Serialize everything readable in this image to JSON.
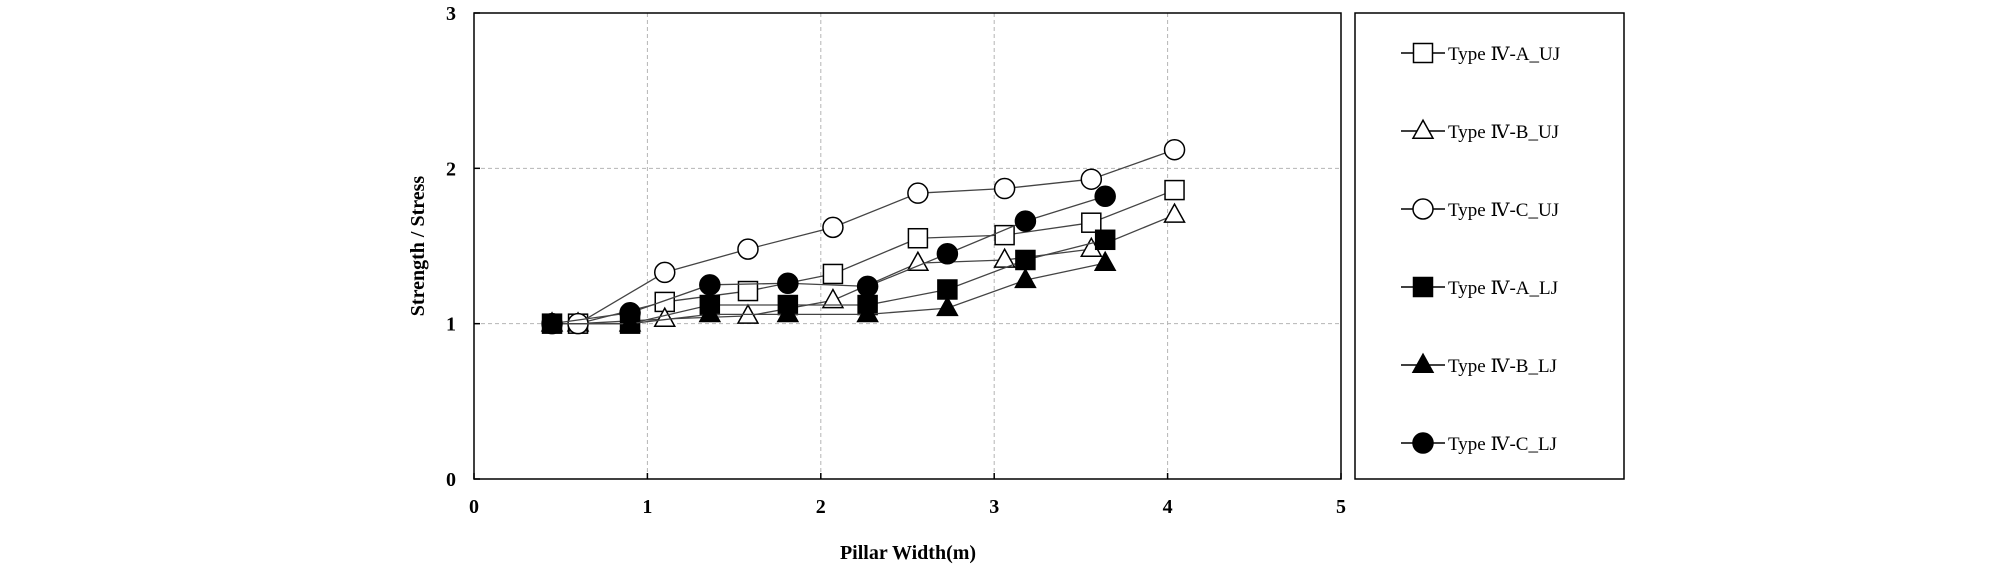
{
  "chart_data": {
    "type": "line",
    "title": "",
    "xlabel": "Pillar Width(m)",
    "ylabel": "Strength / Stress",
    "xlim": [
      0,
      5
    ],
    "ylim": [
      0,
      3
    ],
    "xticks": [
      "0",
      "1",
      "2",
      "3",
      "4",
      "5"
    ],
    "yticks": [
      "0",
      "1",
      "2",
      "3"
    ],
    "grid": true,
    "legend_position": "right",
    "series": [
      {
        "name": "Type Ⅳ-A_UJ",
        "marker": "square",
        "filled": false,
        "x": [
          0.6,
          1.1,
          1.58,
          2.07,
          2.56,
          3.06,
          3.56,
          4.04
        ],
        "y": [
          1.0,
          1.14,
          1.21,
          1.32,
          1.55,
          1.57,
          1.65,
          1.86
        ]
      },
      {
        "name": "Type Ⅳ-B_UJ",
        "marker": "triangle",
        "filled": false,
        "x": [
          0.6,
          1.1,
          1.58,
          2.07,
          2.56,
          3.06,
          3.56,
          4.04
        ],
        "y": [
          1.0,
          1.03,
          1.05,
          1.15,
          1.39,
          1.41,
          1.48,
          1.7
        ]
      },
      {
        "name": "Type Ⅳ-C_UJ",
        "marker": "circle",
        "filled": false,
        "x": [
          0.6,
          1.1,
          1.58,
          2.07,
          2.56,
          3.06,
          3.56,
          4.04
        ],
        "y": [
          1.0,
          1.33,
          1.48,
          1.62,
          1.84,
          1.87,
          1.93,
          2.12
        ]
      },
      {
        "name": "Type Ⅳ-A_LJ",
        "marker": "square",
        "filled": true,
        "x": [
          0.45,
          0.9,
          1.36,
          1.81,
          2.27,
          2.73,
          3.18,
          3.64
        ],
        "y": [
          1.0,
          1.0,
          1.12,
          1.12,
          1.12,
          1.22,
          1.41,
          1.54
        ]
      },
      {
        "name": "Type Ⅳ-B_LJ",
        "marker": "triangle",
        "filled": true,
        "x": [
          0.45,
          0.9,
          1.36,
          1.81,
          2.27,
          2.73,
          3.18,
          3.64
        ],
        "y": [
          1.0,
          1.0,
          1.06,
          1.06,
          1.06,
          1.1,
          1.28,
          1.39
        ]
      },
      {
        "name": "Type Ⅳ-C_LJ",
        "marker": "circle",
        "filled": true,
        "x": [
          0.45,
          0.9,
          1.36,
          1.81,
          2.27,
          2.73,
          3.18,
          3.64
        ],
        "y": [
          1.0,
          1.07,
          1.25,
          1.26,
          1.24,
          1.45,
          1.66,
          1.82
        ]
      }
    ]
  }
}
